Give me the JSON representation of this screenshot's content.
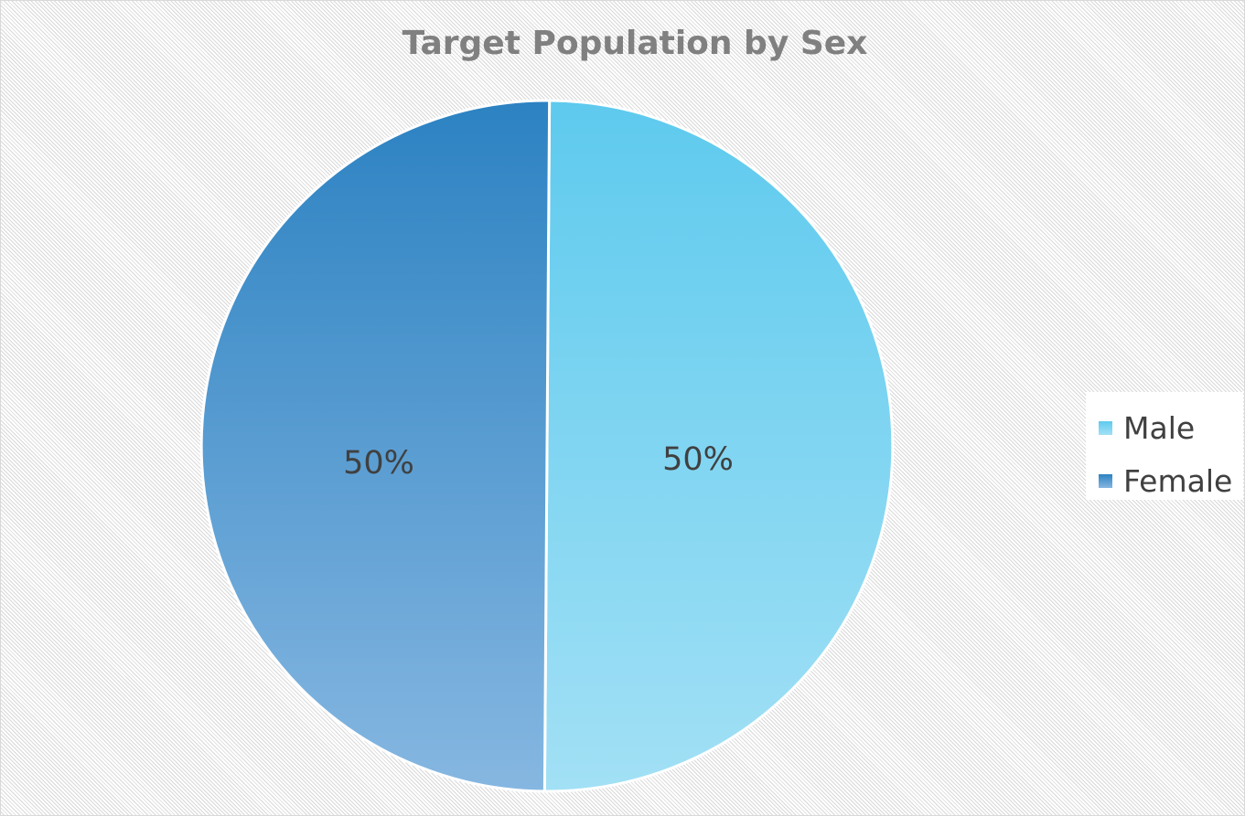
{
  "chart_data": {
    "type": "pie",
    "title": "Target Population by Sex",
    "categories": [
      "Male",
      "Female"
    ],
    "values": [
      50,
      50
    ],
    "data_labels": [
      "50%",
      "50%"
    ],
    "colors": {
      "Male": {
        "light": "#a2e0f5",
        "dark": "#5ecaee"
      },
      "Female": {
        "light": "#86b7e1",
        "dark": "#2c82c2"
      }
    },
    "legend": {
      "placement": "right",
      "items": [
        {
          "label": "Male",
          "color": "#6fd0f0"
        },
        {
          "label": "Female",
          "color": "#3a88c8"
        }
      ]
    }
  }
}
